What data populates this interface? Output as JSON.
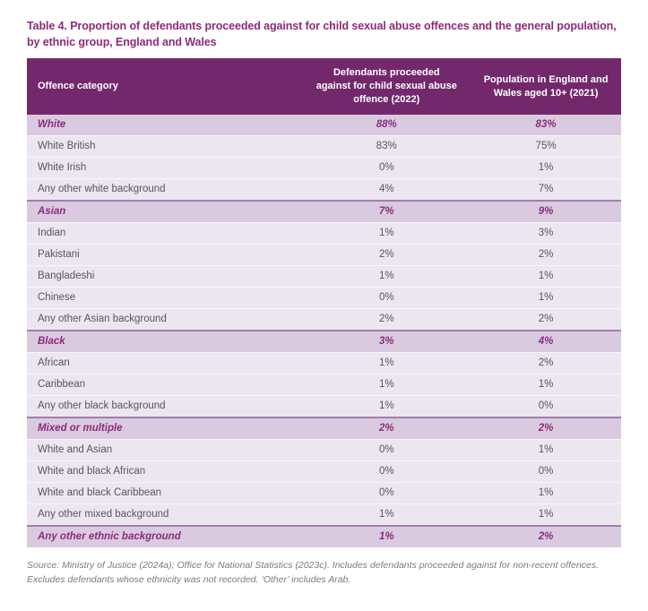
{
  "title": {
    "lines": [
      "Table 4. Proportion of defendants proceeded against for child sexual abuse offences and the general population,",
      "by ethnic group, England and Wales"
    ]
  },
  "table": {
    "columns": [
      "Offence category",
      "Defendants proceeded against for child sexual abuse offence (2022)",
      "Population in England and Wales aged 10+ (2021)"
    ],
    "sections": [
      {
        "label": "White",
        "defendants": "88%",
        "population": "83%",
        "rows": [
          {
            "label": "White British",
            "defendants": "83%",
            "population": "75%"
          },
          {
            "label": "White Irish",
            "defendants": "0%",
            "population": "1%"
          },
          {
            "label": "Any other white background",
            "defendants": "4%",
            "population": "7%"
          }
        ]
      },
      {
        "label": "Asian",
        "defendants": "7%",
        "population": "9%",
        "rows": [
          {
            "label": "Indian",
            "defendants": "1%",
            "population": "3%"
          },
          {
            "label": "Pakistani",
            "defendants": "2%",
            "population": "2%"
          },
          {
            "label": "Bangladeshi",
            "defendants": "1%",
            "population": "1%"
          },
          {
            "label": "Chinese",
            "defendants": "0%",
            "population": "1%"
          },
          {
            "label": "Any other Asian background",
            "defendants": "2%",
            "population": "2%"
          }
        ]
      },
      {
        "label": "Black",
        "defendants": "3%",
        "population": "4%",
        "rows": [
          {
            "label": "African",
            "defendants": "1%",
            "population": "2%"
          },
          {
            "label": "Caribbean",
            "defendants": "1%",
            "population": "1%"
          },
          {
            "label": "Any other black background",
            "defendants": "1%",
            "population": "0%"
          }
        ]
      },
      {
        "label": "Mixed or multiple",
        "defendants": "2%",
        "population": "2%",
        "rows": [
          {
            "label": "White and Asian",
            "defendants": "0%",
            "population": "1%"
          },
          {
            "label": "White and black African",
            "defendants": "0%",
            "population": "0%"
          },
          {
            "label": "White and black Caribbean",
            "defendants": "0%",
            "population": "1%"
          },
          {
            "label": "Any other mixed background",
            "defendants": "1%",
            "population": "1%"
          }
        ]
      },
      {
        "label": "Any other ethnic background",
        "defendants": "1%",
        "population": "2%",
        "rows": []
      }
    ]
  },
  "footer": {
    "text": "Source: Ministry of Justice (2024a); Office for National Statistics (2023c). Includes defendants proceeded against for non-recent offences. Excludes defendants whose ethnicity was not recorded. ‘Other’ includes Arab."
  },
  "colors": {
    "title-color": "#8E2A7B",
    "header-bg": "#73286C",
    "header-text": "#FFFFFF",
    "section-bg": "#D9CADF",
    "section-text": "#8B2C7C",
    "section-divider": "#A17DAE",
    "row-bg": "#ECE6F1",
    "row-text": "#58555B",
    "divider": "#F8F6FA",
    "footer-text": "#7C7C7C"
  }
}
